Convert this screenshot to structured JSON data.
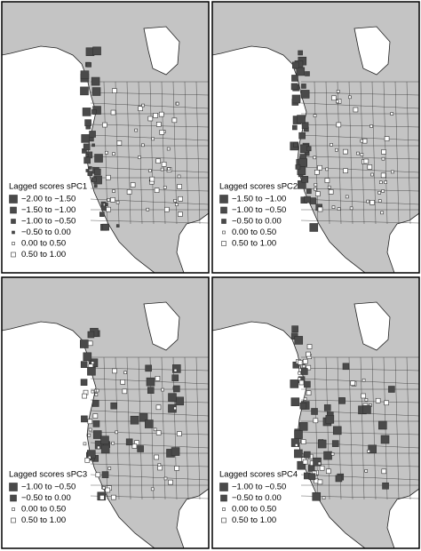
{
  "panels": [
    {
      "legend_title": "Lagged scores sPC1",
      "items": [
        {
          "label": "−2.00 to −1.50",
          "color": "#4a4a4a"
        },
        {
          "label": "−1.50 to −1.00",
          "color": "#4a4a4a"
        },
        {
          "label": "−1.00 to −0.50",
          "color": "#4a4a4a"
        },
        {
          "label": "−0.50 to 0.00",
          "color": "#4a4a4a"
        },
        {
          "label": "0.00 to 0.50",
          "color": "#ffffff"
        },
        {
          "label": "0.50 to 1.00",
          "color": "#ffffff"
        }
      ]
    },
    {
      "legend_title": "Lagged scores sPC2",
      "items": [
        {
          "label": "−1.50 to −1.00",
          "color": "#4a4a4a"
        },
        {
          "label": "−1.00 to −0.50",
          "color": "#4a4a4a"
        },
        {
          "label": "−0.50 to 0.00",
          "color": "#4a4a4a"
        },
        {
          "label": "0.00 to 0.50",
          "color": "#ffffff"
        },
        {
          "label": "0.50 to 1.00",
          "color": "#ffffff"
        }
      ]
    },
    {
      "legend_title": "Lagged scores sPC3",
      "items": [
        {
          "label": "−1.00 to −0.50",
          "color": "#4a4a4a"
        },
        {
          "label": "−0.50 to 0.00",
          "color": "#4a4a4a"
        },
        {
          "label": "0.00 to 0.50",
          "color": "#ffffff"
        },
        {
          "label": "0.50 to 1.00",
          "color": "#ffffff"
        }
      ]
    },
    {
      "legend_title": "Lagged scores sPC4",
      "items": [
        {
          "label": "−1.00 to −0.50",
          "color": "#4a4a4a"
        },
        {
          "label": "−0.50 to 0.00",
          "color": "#4a4a4a"
        },
        {
          "label": "0.00 to 0.50",
          "color": "#ffffff"
        },
        {
          "label": "0.50 to 1.00",
          "color": "#ffffff"
        }
      ]
    }
  ]
}
